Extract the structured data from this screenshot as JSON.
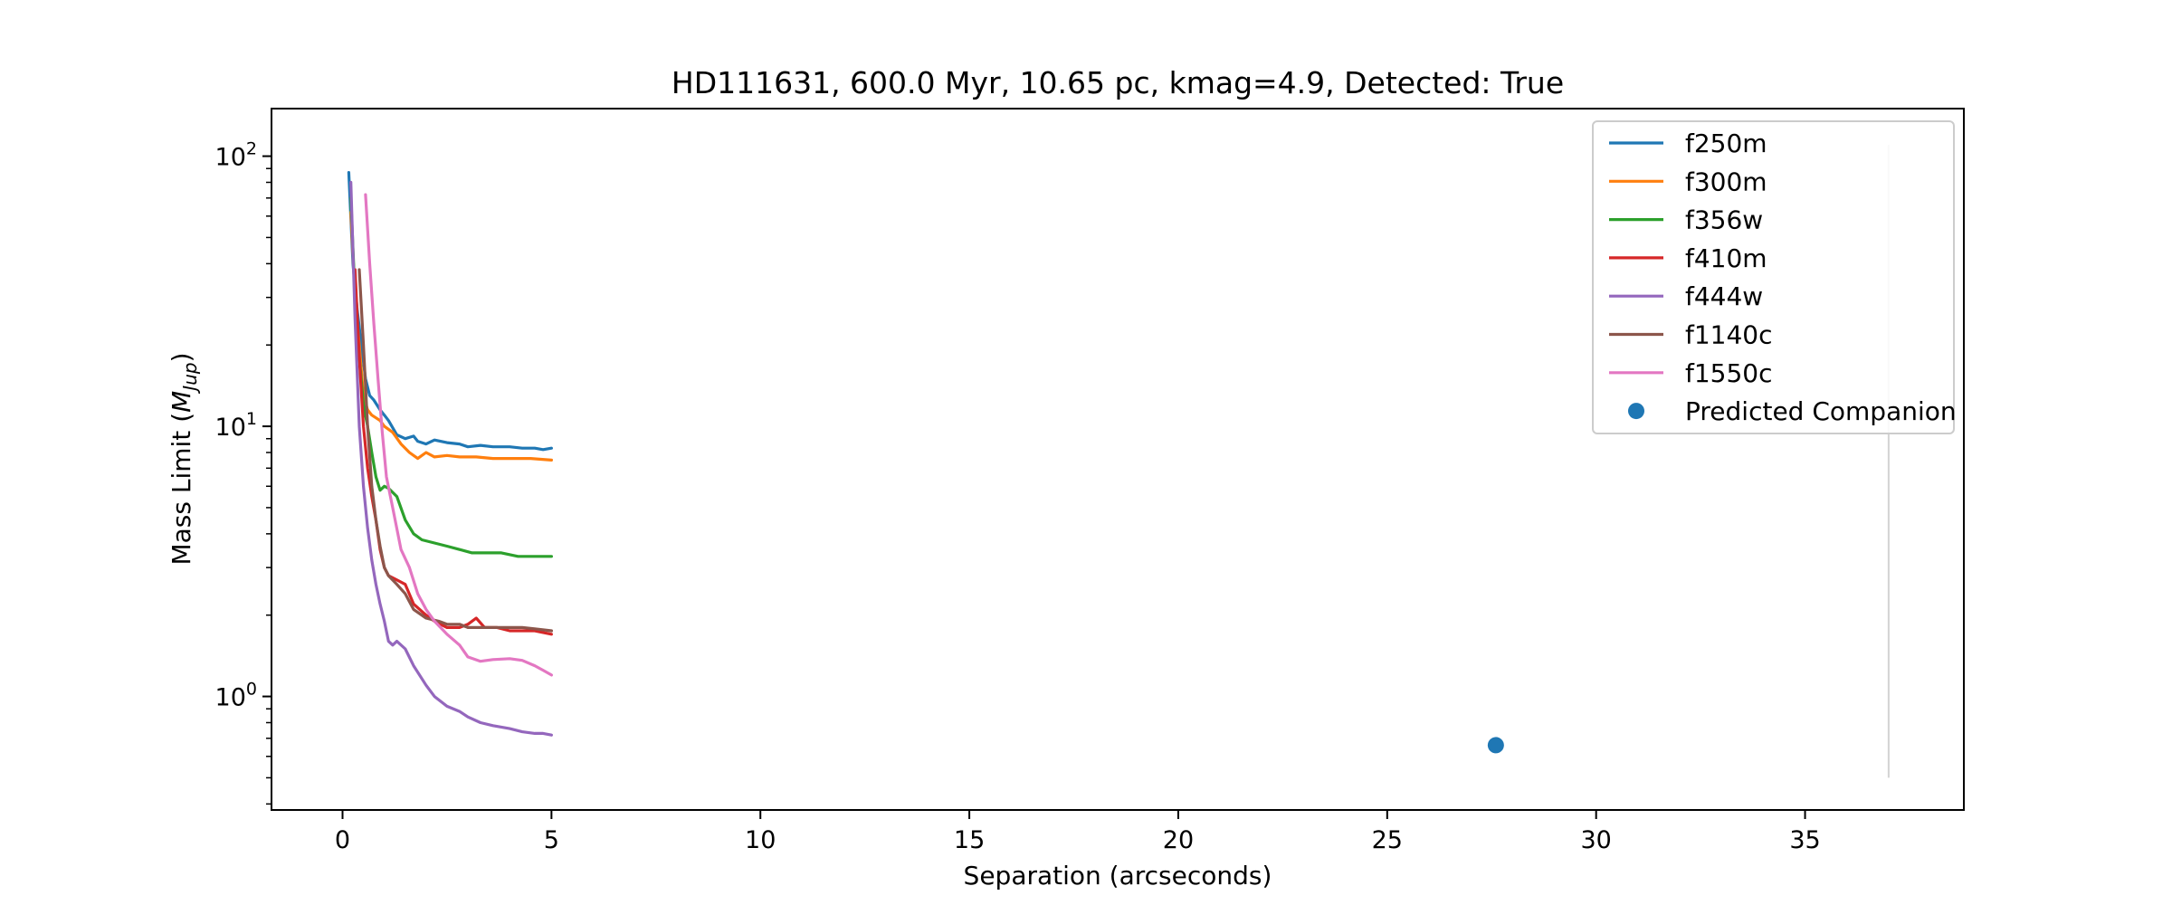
{
  "chart_data": {
    "type": "line",
    "title": "HD111631, 600.0 Myr, 10.65 pc, kmag=4.9, Detected: True",
    "xlabel": "Separation (arcseconds)",
    "ylabel_main": "Mass Limit (",
    "ylabel_sym": "M",
    "ylabel_sub": "Jup",
    "ylabel_close": ")",
    "xscale": "linear",
    "yscale": "log",
    "xlim": [
      -1.7,
      38.8
    ],
    "ylim": [
      0.38,
      150
    ],
    "xticks": [
      0,
      5,
      10,
      15,
      20,
      25,
      30,
      35
    ],
    "xtick_labels": [
      "0",
      "5",
      "10",
      "15",
      "20",
      "25",
      "30",
      "35"
    ],
    "yticks": [
      {
        "value": 1,
        "base": "10",
        "exp": "0"
      },
      {
        "value": 10,
        "base": "10",
        "exp": "1"
      },
      {
        "value": 100,
        "base": "10",
        "exp": "2"
      }
    ],
    "legend_position": "top-right",
    "series": [
      {
        "name": "f250m",
        "color": "#1f77b4",
        "x": [
          0.15,
          0.25,
          0.35,
          0.45,
          0.55,
          0.65,
          0.75,
          0.9,
          1.0,
          1.1,
          1.3,
          1.5,
          1.7,
          1.8,
          2.0,
          2.2,
          2.5,
          2.8,
          3.0,
          3.3,
          3.6,
          4.0,
          4.3,
          4.6,
          4.8,
          5.0
        ],
        "y": [
          87,
          40,
          27,
          20,
          15,
          13,
          12.5,
          11.5,
          11,
          10.5,
          9.3,
          9.0,
          9.2,
          8.8,
          8.6,
          8.9,
          8.7,
          8.6,
          8.4,
          8.5,
          8.4,
          8.4,
          8.3,
          8.3,
          8.2,
          8.3
        ]
      },
      {
        "name": "f300m",
        "color": "#ff7f0e",
        "x": [
          0.2,
          0.3,
          0.4,
          0.5,
          0.6,
          0.7,
          0.9,
          1.0,
          1.2,
          1.4,
          1.6,
          1.8,
          2.0,
          2.2,
          2.5,
          2.8,
          3.2,
          3.6,
          4.0,
          4.5,
          5.0
        ],
        "y": [
          62,
          30,
          20,
          13,
          11.5,
          11,
          10.5,
          10,
          9.5,
          8.6,
          8.0,
          7.6,
          8.0,
          7.7,
          7.8,
          7.7,
          7.7,
          7.6,
          7.6,
          7.6,
          7.5
        ]
      },
      {
        "name": "f356w",
        "color": "#2ca02c",
        "x": [
          0.2,
          0.3,
          0.4,
          0.5,
          0.6,
          0.7,
          0.8,
          0.9,
          1.0,
          1.1,
          1.3,
          1.5,
          1.7,
          1.9,
          2.2,
          2.5,
          2.8,
          3.1,
          3.4,
          3.8,
          4.2,
          4.6,
          5.0
        ],
        "y": [
          70,
          30,
          18,
          12,
          10,
          8,
          6.5,
          5.8,
          6.0,
          5.9,
          5.5,
          4.5,
          4.0,
          3.8,
          3.7,
          3.6,
          3.5,
          3.4,
          3.4,
          3.4,
          3.3,
          3.3,
          3.3
        ]
      },
      {
        "name": "f410m",
        "color": "#d62728",
        "x": [
          0.3,
          0.4,
          0.5,
          0.6,
          0.7,
          0.8,
          0.9,
          1.0,
          1.1,
          1.3,
          1.5,
          1.7,
          2.0,
          2.2,
          2.5,
          2.8,
          3.0,
          3.2,
          3.4,
          3.7,
          4.0,
          4.3,
          4.6,
          5.0
        ],
        "y": [
          38,
          18,
          10,
          7,
          5.5,
          4.5,
          3.5,
          3.0,
          2.8,
          2.7,
          2.6,
          2.2,
          2.0,
          1.9,
          1.8,
          1.8,
          1.85,
          1.95,
          1.8,
          1.8,
          1.75,
          1.75,
          1.75,
          1.7
        ]
      },
      {
        "name": "f444w",
        "color": "#9467bd",
        "x": [
          0.2,
          0.3,
          0.4,
          0.5,
          0.6,
          0.7,
          0.8,
          0.9,
          1.0,
          1.1,
          1.2,
          1.3,
          1.5,
          1.7,
          2.0,
          2.2,
          2.5,
          2.8,
          3.0,
          3.3,
          3.6,
          4.0,
          4.3,
          4.6,
          4.8,
          5.0
        ],
        "y": [
          80,
          25,
          10,
          6,
          4.2,
          3.2,
          2.6,
          2.2,
          1.9,
          1.6,
          1.55,
          1.6,
          1.5,
          1.3,
          1.1,
          1.0,
          0.92,
          0.88,
          0.84,
          0.8,
          0.78,
          0.76,
          0.74,
          0.73,
          0.73,
          0.72
        ]
      },
      {
        "name": "f1140c",
        "color": "#8c564b",
        "x": [
          0.4,
          0.5,
          0.6,
          0.7,
          0.8,
          0.9,
          1.0,
          1.1,
          1.3,
          1.5,
          1.7,
          2.0,
          2.3,
          2.5,
          2.8,
          3.0,
          3.3,
          3.6,
          4.0,
          4.3,
          4.6,
          5.0
        ],
        "y": [
          38,
          20,
          10,
          6,
          4.5,
          3.6,
          3.0,
          2.8,
          2.6,
          2.4,
          2.1,
          1.95,
          1.9,
          1.85,
          1.85,
          1.8,
          1.8,
          1.8,
          1.8,
          1.8,
          1.78,
          1.75
        ]
      },
      {
        "name": "f1550c",
        "color": "#e377c2",
        "x": [
          0.55,
          0.65,
          0.75,
          0.85,
          0.95,
          1.05,
          1.2,
          1.4,
          1.6,
          1.8,
          2.0,
          2.2,
          2.5,
          2.8,
          3.0,
          3.3,
          3.6,
          4.0,
          4.3,
          4.6,
          4.8,
          5.0
        ],
        "y": [
          72,
          40,
          24,
          15,
          9.5,
          6.5,
          5.0,
          3.5,
          3.0,
          2.4,
          2.1,
          1.9,
          1.7,
          1.55,
          1.4,
          1.35,
          1.37,
          1.38,
          1.36,
          1.3,
          1.25,
          1.2
        ]
      }
    ],
    "scatter": {
      "name": "Predicted Companion",
      "color": "#1f77b4",
      "x": [
        27.6
      ],
      "y": [
        0.66
      ]
    },
    "vline": {
      "x": 37,
      "y_from": 0.5,
      "y_to": 110,
      "color": "#d3d3d3"
    }
  }
}
